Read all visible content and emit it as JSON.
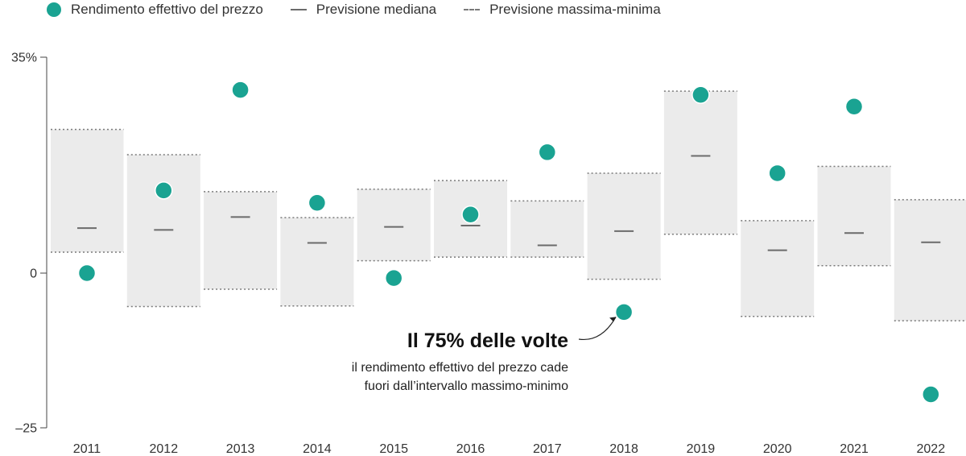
{
  "chart_data": {
    "type": "scatter",
    "categories": [
      "2011",
      "2012",
      "2013",
      "2014",
      "2015",
      "2016",
      "2017",
      "2018",
      "2019",
      "2020",
      "2021",
      "2022"
    ],
    "series": [
      {
        "name": "Rendimento effettivo del prezzo",
        "values": [
          0.0,
          13.4,
          29.7,
          11.4,
          -0.8,
          9.5,
          19.6,
          -6.3,
          28.9,
          16.2,
          27.0,
          -19.6
        ]
      },
      {
        "name": "Previsione mediana",
        "values": [
          7.3,
          7.0,
          9.1,
          4.9,
          7.5,
          7.7,
          4.5,
          6.8,
          19.0,
          3.7,
          6.5,
          5.0
        ]
      },
      {
        "name": "Previsione massima-minima",
        "max": [
          23.3,
          19.2,
          13.2,
          9.0,
          13.6,
          15.0,
          11.7,
          16.2,
          29.5,
          8.5,
          17.3,
          11.9
        ],
        "min": [
          3.4,
          -5.4,
          -2.6,
          -5.3,
          2.0,
          2.6,
          2.6,
          -1.0,
          6.3,
          -7.0,
          1.2,
          -7.7
        ]
      }
    ],
    "ylim": [
      -25,
      35
    ],
    "y_tick_labels": [
      "35%",
      "0",
      "–25"
    ],
    "y_tick_values": [
      35,
      0,
      -25
    ],
    "legend": {
      "position": "top-left"
    },
    "colors": {
      "actual": "#1aa392",
      "median": "#6b6b6b",
      "range_fill": "#ebebeb",
      "range_border": "#7a7a7a"
    },
    "annotation": {
      "title": "Il 75% delle volte",
      "lines": [
        "il rendimento effettivo del prezzo cade",
        "fuori dall’intervallo massimo-minimo"
      ],
      "target_category": "2018"
    }
  }
}
